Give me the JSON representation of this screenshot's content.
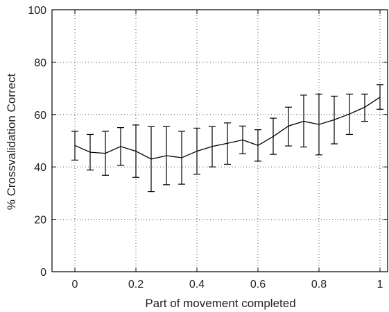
{
  "chart_data": {
    "type": "line",
    "title": "",
    "xlabel": "Part of movement completed",
    "ylabel": "% Crossvalidation Correct",
    "xlim": [
      -0.075,
      1.025
    ],
    "ylim": [
      0,
      100
    ],
    "xticks": [
      0,
      0.2,
      0.4,
      0.6,
      0.8,
      1
    ],
    "xtick_labels": [
      "0",
      "0.2",
      "0.4",
      "0.6",
      "0.8",
      "1"
    ],
    "yticks": [
      0,
      20,
      40,
      60,
      80,
      100
    ],
    "ytick_labels": [
      "0",
      "20",
      "40",
      "60",
      "80",
      "100"
    ],
    "grid": true,
    "grid_style": "dotted",
    "line_color": "#000000",
    "series": [
      {
        "x": [
          0,
          0.05,
          0.1,
          0.15,
          0.2,
          0.25,
          0.3,
          0.35,
          0.4,
          0.45,
          0.5,
          0.55,
          0.6,
          0.65,
          0.7,
          0.75,
          0.8,
          0.85,
          0.9,
          0.95,
          1
        ],
        "y": [
          48.2,
          45.6,
          45.2,
          47.8,
          46.0,
          43.0,
          44.3,
          43.5,
          46.0,
          47.8,
          49.0,
          50.3,
          48.2,
          51.6,
          55.6,
          57.4,
          56.2,
          58.0,
          60.2,
          62.8,
          66.6
        ],
        "err_low": [
          42.6,
          38.8,
          36.8,
          40.6,
          36.0,
          30.6,
          33.2,
          33.4,
          37.2,
          40.0,
          41.0,
          45.0,
          42.2,
          44.8,
          48.0,
          47.6,
          44.6,
          48.8,
          52.4,
          57.4,
          62.0
        ],
        "err_high": [
          53.6,
          52.4,
          53.6,
          55.0,
          56.0,
          55.4,
          55.4,
          53.6,
          54.8,
          55.4,
          56.8,
          55.6,
          54.2,
          58.6,
          62.8,
          67.4,
          67.8,
          67.0,
          67.8,
          67.8,
          71.4
        ]
      }
    ]
  }
}
